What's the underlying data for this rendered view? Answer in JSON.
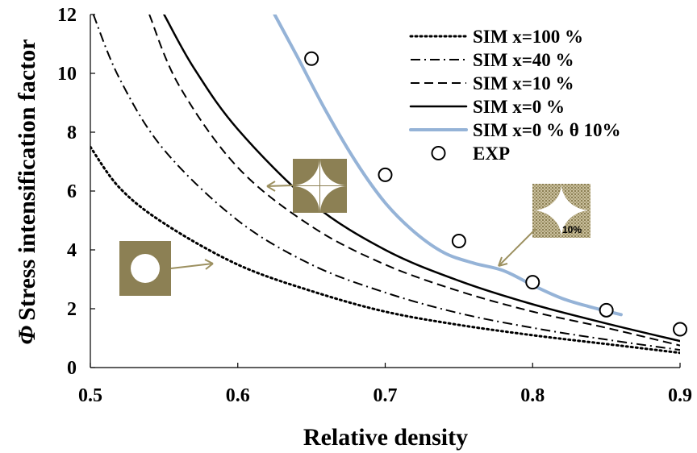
{
  "chart_data": {
    "type": "line",
    "xlabel": "Relative density",
    "ylabel_symbol": "Φ",
    "ylabel": "Stress intensification factor",
    "xlim": [
      0.5,
      0.9
    ],
    "ylim": [
      0,
      12
    ],
    "x_ticks": [
      "0.5",
      "0.6",
      "0.7",
      "0.8",
      "0.9"
    ],
    "y_ticks": [
      "0",
      "2",
      "4",
      "6",
      "8",
      "10",
      "12"
    ],
    "grid": false,
    "legend_position": "top-right",
    "series": [
      {
        "name": "SIM x=100 %",
        "style": "dotted",
        "color": "#000000",
        "points": [
          [
            0.5,
            7.5
          ],
          [
            0.52,
            6.1
          ],
          [
            0.55,
            4.9
          ],
          [
            0.6,
            3.5
          ],
          [
            0.65,
            2.6
          ],
          [
            0.7,
            1.9
          ],
          [
            0.75,
            1.45
          ],
          [
            0.8,
            1.1
          ],
          [
            0.85,
            0.8
          ],
          [
            0.9,
            0.5
          ]
        ]
      },
      {
        "name": "SIM x=40 %",
        "style": "dashdot",
        "color": "#000000",
        "points": [
          [
            0.502,
            12.0
          ],
          [
            0.52,
            9.8
          ],
          [
            0.55,
            7.4
          ],
          [
            0.6,
            5.0
          ],
          [
            0.65,
            3.5
          ],
          [
            0.7,
            2.55
          ],
          [
            0.75,
            1.85
          ],
          [
            0.8,
            1.35
          ],
          [
            0.85,
            0.95
          ],
          [
            0.9,
            0.6
          ]
        ]
      },
      {
        "name": "SIM x=10 %",
        "style": "dashed",
        "color": "#000000",
        "points": [
          [
            0.54,
            12.0
          ],
          [
            0.56,
            9.6
          ],
          [
            0.6,
            6.8
          ],
          [
            0.65,
            4.8
          ],
          [
            0.7,
            3.5
          ],
          [
            0.75,
            2.6
          ],
          [
            0.8,
            1.9
          ],
          [
            0.85,
            1.35
          ],
          [
            0.9,
            0.75
          ]
        ]
      },
      {
        "name": "SIM x=0 %",
        "style": "solid",
        "color": "#000000",
        "points": [
          [
            0.55,
            12.0
          ],
          [
            0.57,
            10.2
          ],
          [
            0.6,
            8.1
          ],
          [
            0.65,
            5.6
          ],
          [
            0.7,
            4.0
          ],
          [
            0.75,
            2.95
          ],
          [
            0.8,
            2.15
          ],
          [
            0.85,
            1.5
          ],
          [
            0.9,
            0.9
          ]
        ]
      },
      {
        "name": "SIM x=0 % θ 10%",
        "style": "solid",
        "color": "#95B3D7",
        "points": [
          [
            0.625,
            12.0
          ],
          [
            0.64,
            10.6
          ],
          [
            0.66,
            8.7
          ],
          [
            0.68,
            7.0
          ],
          [
            0.7,
            5.6
          ],
          [
            0.72,
            4.6
          ],
          [
            0.74,
            3.9
          ],
          [
            0.76,
            3.55
          ],
          [
            0.78,
            3.3
          ],
          [
            0.8,
            2.8
          ],
          [
            0.82,
            2.35
          ],
          [
            0.84,
            2.05
          ],
          [
            0.86,
            1.8
          ]
        ]
      }
    ],
    "exp": {
      "name": "EXP",
      "marker": "open-circle",
      "x": [
        0.65,
        0.7,
        0.75,
        0.8,
        0.85,
        0.9
      ],
      "y": [
        10.5,
        6.55,
        4.3,
        2.9,
        1.95,
        1.3
      ]
    },
    "annotations": [
      {
        "name": "circular-hole-unit-cell",
        "inset": "circle",
        "points_to": [
          0.585,
          3.5
        ]
      },
      {
        "name": "four-quarter-circle-unit-cell",
        "inset": "quarter-circles",
        "points_to": [
          0.62,
          6.2
        ]
      },
      {
        "name": "ten-percent-unit-cell",
        "inset": "quarter-circles-textured",
        "label": "10%",
        "points_to": [
          0.77,
          3.45
        ]
      }
    ],
    "inset_color": "#8C8054",
    "arrow_color": "#9C9060"
  }
}
